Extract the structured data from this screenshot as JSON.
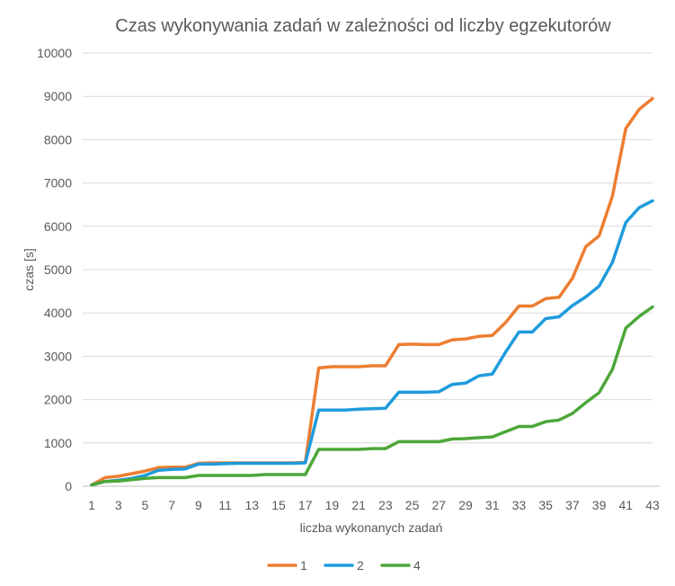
{
  "chart_data": {
    "type": "line",
    "title": "Czas wykonywania zadań w zależności od liczby egzekutorów",
    "xlabel": "liczba wykonanych zadań",
    "ylabel": "czas [s]",
    "ylim": [
      0,
      10000
    ],
    "ytick_step": 1000,
    "grid": true,
    "legend_position": "bottom",
    "x": [
      1,
      2,
      3,
      4,
      5,
      6,
      7,
      8,
      9,
      10,
      11,
      12,
      13,
      14,
      15,
      16,
      17,
      18,
      19,
      20,
      21,
      22,
      23,
      24,
      25,
      26,
      27,
      28,
      29,
      30,
      31,
      32,
      33,
      34,
      35,
      36,
      37,
      38,
      39,
      40,
      41,
      42,
      43
    ],
    "x_tick_labels": [
      "1",
      "3",
      "5",
      "7",
      "9",
      "11",
      "13",
      "15",
      "17",
      "19",
      "21",
      "23",
      "25",
      "27",
      "29",
      "31",
      "33",
      "35",
      "37",
      "39",
      "41",
      "43"
    ],
    "series": [
      {
        "name": "1",
        "color": "#ED7D31",
        "values": [
          30,
          200,
          230,
          290,
          350,
          430,
          440,
          440,
          530,
          540,
          540,
          540,
          540,
          540,
          540,
          540,
          550,
          2730,
          2760,
          2760,
          2760,
          2780,
          2780,
          3270,
          3280,
          3270,
          3270,
          3380,
          3400,
          3460,
          3480,
          3780,
          4160,
          4160,
          4330,
          4360,
          4800,
          5530,
          5780,
          6700,
          8260,
          8700,
          8950
        ]
      },
      {
        "name": "2",
        "color": "#1F9BDC",
        "values": [
          30,
          110,
          140,
          180,
          250,
          370,
          390,
          400,
          510,
          510,
          520,
          530,
          530,
          530,
          530,
          530,
          540,
          1760,
          1760,
          1760,
          1780,
          1790,
          1800,
          2170,
          2170,
          2170,
          2180,
          2350,
          2380,
          2550,
          2590,
          3100,
          3560,
          3560,
          3870,
          3910,
          4170,
          4370,
          4620,
          5170,
          6090,
          6430,
          6590
        ]
      },
      {
        "name": "4",
        "color": "#4CA738",
        "values": [
          30,
          110,
          120,
          150,
          180,
          200,
          200,
          200,
          250,
          250,
          250,
          250,
          250,
          270,
          270,
          270,
          270,
          850,
          850,
          850,
          850,
          870,
          870,
          1030,
          1030,
          1030,
          1030,
          1090,
          1100,
          1120,
          1140,
          1260,
          1380,
          1380,
          1490,
          1530,
          1680,
          1930,
          2160,
          2700,
          3650,
          3920,
          4140
        ]
      }
    ]
  }
}
